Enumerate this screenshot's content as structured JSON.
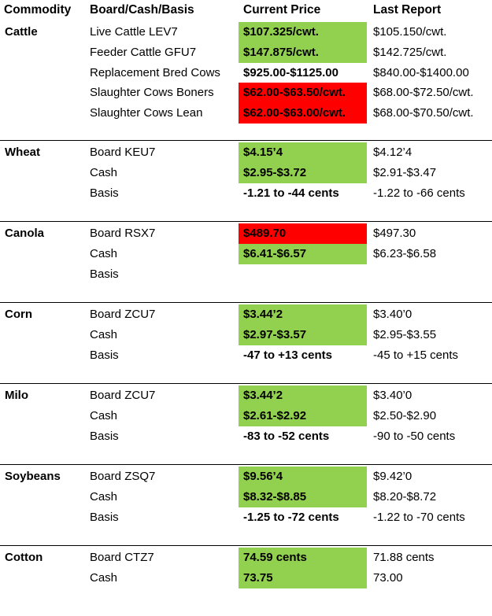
{
  "headers": {
    "commodity": "Commodity",
    "board": "Board/Cash/Basis",
    "current": "Current Price",
    "last": "Last Report"
  },
  "groups": [
    {
      "commodity": "Cattle",
      "rows": [
        {
          "item": "Live Cattle LEV7",
          "current": "$107.325/cwt.",
          "last": "$105.150/cwt.",
          "highlight": "green"
        },
        {
          "item": "Feeder Cattle GFU7",
          "current": "$147.875/cwt.",
          "last": "$142.725/cwt.",
          "highlight": "green"
        },
        {
          "item": "Replacement Bred Cows",
          "current": "$925.00-$1125.00",
          "last": "$840.00-$1400.00",
          "highlight": "none"
        },
        {
          "item": "Slaughter Cows Boners",
          "current": "$62.00-$63.50/cwt.",
          "last": "$68.00-$72.50/cwt.",
          "highlight": "red"
        },
        {
          "item": "Slaughter Cows Lean",
          "current": "$62.00-$63.00/cwt.",
          "last": "$68.00-$70.50/cwt.",
          "highlight": "red"
        }
      ]
    },
    {
      "commodity": "Wheat",
      "rows": [
        {
          "item": "Board KEU7",
          "current": "$4.15’4",
          "last": "$4.12’4",
          "highlight": "green"
        },
        {
          "item": "Cash",
          "current": "$2.95-$3.72",
          "last": "$2.91-$3.47",
          "highlight": "green"
        },
        {
          "item": "Basis",
          "current": "-1.21 to -44 cents",
          "last": "-1.22 to -66 cents",
          "highlight": "none"
        }
      ]
    },
    {
      "commodity": "Canola",
      "rows": [
        {
          "item": "Board RSX7",
          "current": "$489.70",
          "last": "$497.30",
          "highlight": "red"
        },
        {
          "item": "Cash",
          "current": "$6.41-$6.57",
          "last": "$6.23-$6.58",
          "highlight": "green"
        },
        {
          "item": "Basis",
          "current": "",
          "last": "",
          "highlight": "none"
        }
      ]
    },
    {
      "commodity": "Corn",
      "rows": [
        {
          "item": "Board ZCU7",
          "current": "$3.44’2",
          "last": "$3.40’0",
          "highlight": "green"
        },
        {
          "item": "Cash",
          "current": "$2.97-$3.57",
          "last": "$2.95-$3.55",
          "highlight": "green"
        },
        {
          "item": "Basis",
          "current": "-47 to +13 cents",
          "last": "-45 to +15 cents",
          "highlight": "none"
        }
      ]
    },
    {
      "commodity": "Milo",
      "rows": [
        {
          "item": "Board ZCU7",
          "current": "$3.44’2",
          "last": "$3.40’0",
          "highlight": "green"
        },
        {
          "item": "Cash",
          "current": "$2.61-$2.92",
          "last": "$2.50-$2.90",
          "highlight": "green"
        },
        {
          "item": "Basis",
          "current": "-83 to -52 cents",
          "last": "-90 to -50 cents",
          "highlight": "none"
        }
      ]
    },
    {
      "commodity": "Soybeans",
      "rows": [
        {
          "item": "Board ZSQ7",
          "current": "$9.56’4",
          "last": "$9.42’0",
          "highlight": "green"
        },
        {
          "item": "Cash",
          "current": "$8.32-$8.85",
          "last": "$8.20-$8.72",
          "highlight": "green"
        },
        {
          "item": "Basis",
          "current": "-1.25 to -72 cents",
          "last": "-1.22 to -70 cents",
          "highlight": "none"
        }
      ]
    },
    {
      "commodity": "Cotton",
      "rows": [
        {
          "item": "Board CTZ7",
          "current": "74.59 cents",
          "last": "71.88 cents",
          "highlight": "green"
        },
        {
          "item": "Cash",
          "current": "73.75",
          "last": "73.00",
          "highlight": "green"
        }
      ]
    }
  ]
}
